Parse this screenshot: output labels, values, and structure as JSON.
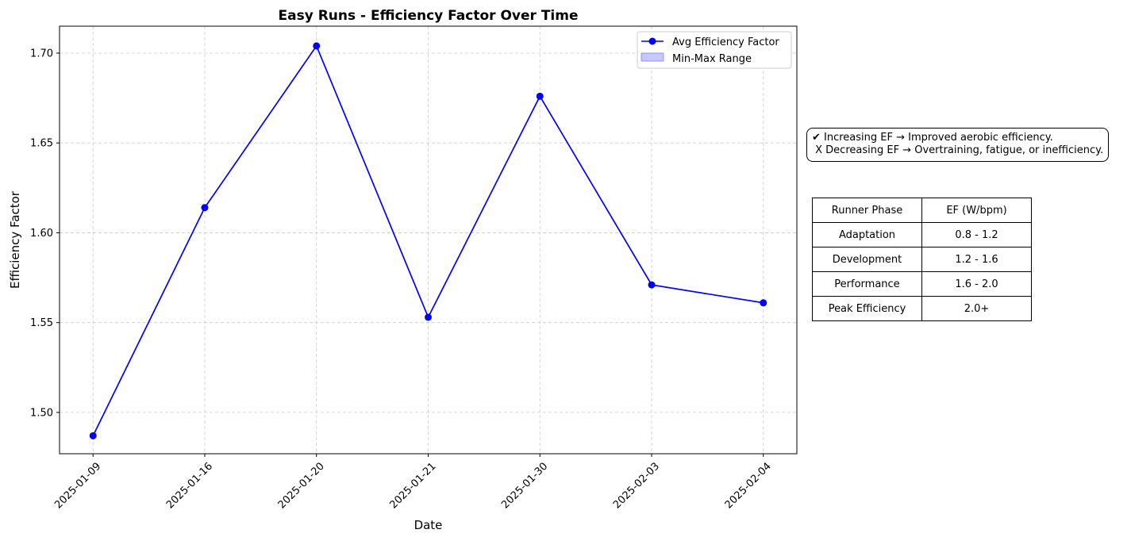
{
  "chart_data": {
    "type": "line",
    "title": "Easy Runs - Efficiency Factor Over Time",
    "xlabel": "Date",
    "ylabel": "Efficiency Factor",
    "categories": [
      "2025-01-09",
      "2025-01-16",
      "2025-01-20",
      "2025-01-21",
      "2025-01-30",
      "2025-02-03",
      "2025-02-04"
    ],
    "series": [
      {
        "name": "Avg Efficiency Factor",
        "color": "#0000ff",
        "values": [
          1.487,
          1.614,
          1.704,
          1.553,
          1.676,
          1.571,
          1.561
        ]
      }
    ],
    "legend_entries": [
      "Avg Efficiency Factor",
      "Min-Max Range"
    ],
    "legend_placement": "top-right",
    "range_color": "#c8c8ff",
    "ylim": [
      1.477,
      1.715
    ],
    "yticks": [
      "1.50",
      "1.55",
      "1.60",
      "1.65",
      "1.70"
    ],
    "grid": true,
    "x_tick_rotation_deg": 45
  },
  "note": {
    "lines": [
      "✔ Increasing EF → Improved aerobic efficiency.",
      " X Decreasing EF → Overtraining, fatigue, or inefficiency."
    ]
  },
  "phase_table": {
    "header": [
      "Runner Phase",
      "EF (W/bpm)"
    ],
    "rows": [
      [
        "Adaptation",
        "0.8 - 1.2"
      ],
      [
        "Development",
        "1.2 - 1.6"
      ],
      [
        "Performance",
        "1.6 - 2.0"
      ],
      [
        "Peak Efficiency",
        "2.0+"
      ]
    ]
  }
}
